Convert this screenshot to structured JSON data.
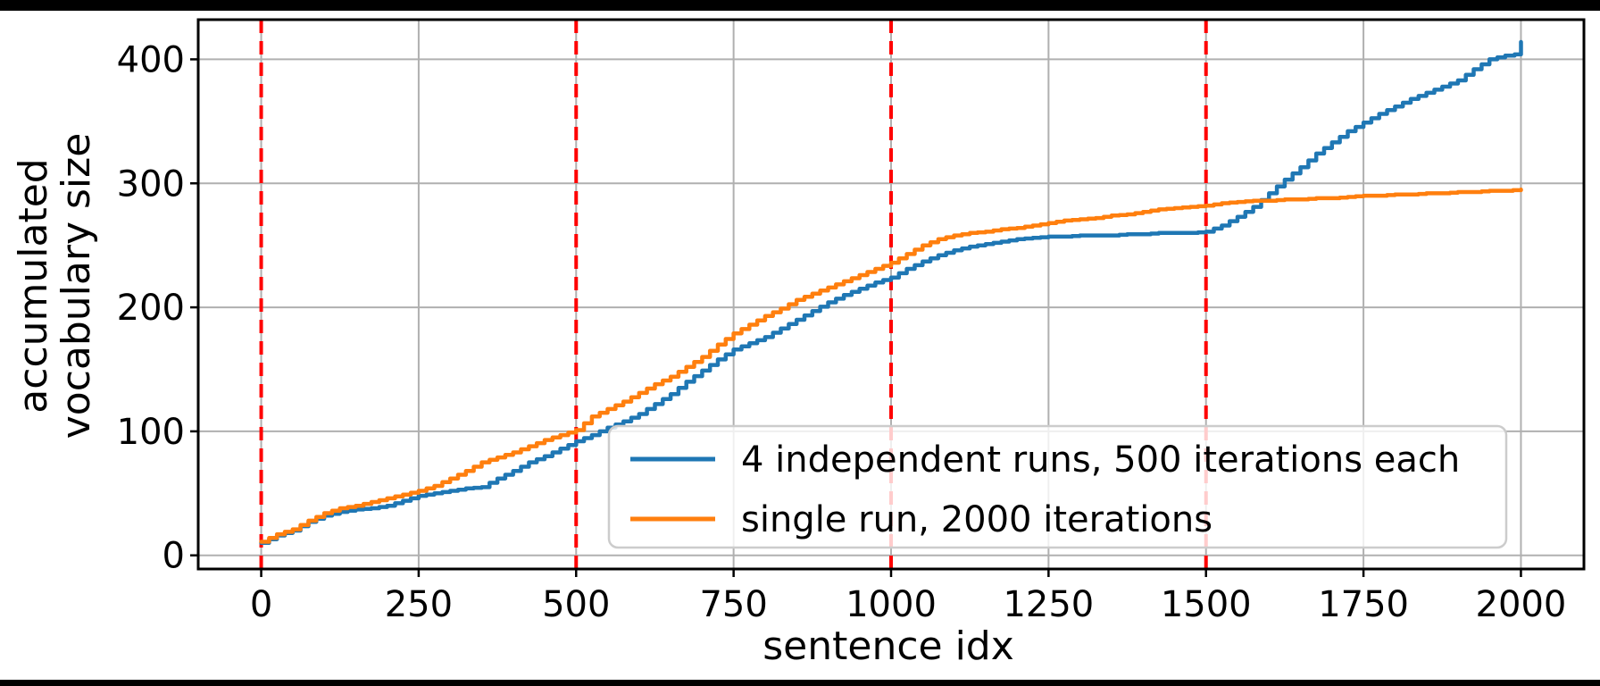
{
  "figure": {
    "background": "#ffffff",
    "frame_color": "#000000"
  },
  "chart_data": {
    "type": "line",
    "title": "",
    "xlabel": "sentence idx",
    "ylabel_lines": [
      "accumulated",
      "vocabulary size"
    ],
    "xlim": [
      -100,
      2100
    ],
    "ylim": [
      -11,
      432
    ],
    "xticks": [
      0,
      250,
      500,
      750,
      1000,
      1250,
      1500,
      1750,
      2000
    ],
    "yticks": [
      0,
      100,
      200,
      300,
      400
    ],
    "grid": true,
    "grid_color": "#b0b0b0",
    "spine_color": "#000000",
    "legend_position": "lower-right-inside",
    "vlines": {
      "x": [
        0,
        500,
        1000,
        1500
      ],
      "color": "#ff0000",
      "style": "dashed"
    },
    "series": [
      {
        "name": "4 independent runs, 500 iterations each",
        "color": "#1f77b4",
        "points": [
          [
            0,
            10
          ],
          [
            25,
            16
          ],
          [
            50,
            20
          ],
          [
            75,
            27
          ],
          [
            100,
            32
          ],
          [
            125,
            35
          ],
          [
            150,
            37
          ],
          [
            175,
            38
          ],
          [
            200,
            40
          ],
          [
            225,
            44
          ],
          [
            250,
            48
          ],
          [
            275,
            50
          ],
          [
            300,
            52
          ],
          [
            325,
            54
          ],
          [
            350,
            55
          ],
          [
            375,
            62
          ],
          [
            400,
            68
          ],
          [
            425,
            75
          ],
          [
            450,
            80
          ],
          [
            475,
            86
          ],
          [
            500,
            92
          ],
          [
            525,
            97
          ],
          [
            550,
            103
          ],
          [
            575,
            108
          ],
          [
            600,
            114
          ],
          [
            625,
            122
          ],
          [
            650,
            130
          ],
          [
            675,
            140
          ],
          [
            700,
            149
          ],
          [
            725,
            158
          ],
          [
            750,
            166
          ],
          [
            775,
            171
          ],
          [
            800,
            176
          ],
          [
            825,
            183
          ],
          [
            850,
            190
          ],
          [
            875,
            197
          ],
          [
            900,
            204
          ],
          [
            925,
            210
          ],
          [
            950,
            215
          ],
          [
            975,
            220
          ],
          [
            1000,
            224
          ],
          [
            1025,
            231
          ],
          [
            1050,
            237
          ],
          [
            1075,
            242
          ],
          [
            1100,
            246
          ],
          [
            1125,
            249
          ],
          [
            1150,
            251
          ],
          [
            1175,
            253
          ],
          [
            1200,
            255
          ],
          [
            1225,
            256
          ],
          [
            1250,
            257
          ],
          [
            1275,
            257
          ],
          [
            1300,
            258
          ],
          [
            1325,
            258
          ],
          [
            1350,
            258
          ],
          [
            1375,
            259
          ],
          [
            1400,
            259
          ],
          [
            1425,
            260
          ],
          [
            1450,
            260
          ],
          [
            1475,
            260
          ],
          [
            1500,
            261
          ],
          [
            1525,
            266
          ],
          [
            1550,
            273
          ],
          [
            1575,
            281
          ],
          [
            1600,
            292
          ],
          [
            1625,
            303
          ],
          [
            1650,
            313
          ],
          [
            1675,
            324
          ],
          [
            1700,
            333
          ],
          [
            1725,
            342
          ],
          [
            1750,
            349
          ],
          [
            1775,
            356
          ],
          [
            1800,
            362
          ],
          [
            1825,
            368
          ],
          [
            1850,
            373
          ],
          [
            1875,
            378
          ],
          [
            1900,
            383
          ],
          [
            1925,
            392
          ],
          [
            1950,
            400
          ],
          [
            1975,
            403
          ],
          [
            1990,
            404
          ],
          [
            2000,
            414
          ]
        ]
      },
      {
        "name": "single run, 2000 iterations",
        "color": "#ff7f0e",
        "points": [
          [
            0,
            11
          ],
          [
            25,
            17
          ],
          [
            50,
            21
          ],
          [
            75,
            28
          ],
          [
            100,
            34
          ],
          [
            125,
            38
          ],
          [
            150,
            40
          ],
          [
            175,
            43
          ],
          [
            200,
            46
          ],
          [
            225,
            49
          ],
          [
            250,
            52
          ],
          [
            275,
            56
          ],
          [
            300,
            62
          ],
          [
            325,
            68
          ],
          [
            350,
            75
          ],
          [
            375,
            79
          ],
          [
            400,
            83
          ],
          [
            425,
            88
          ],
          [
            450,
            93
          ],
          [
            475,
            97
          ],
          [
            500,
            101
          ],
          [
            525,
            112
          ],
          [
            550,
            118
          ],
          [
            575,
            124
          ],
          [
            600,
            131
          ],
          [
            625,
            138
          ],
          [
            650,
            144
          ],
          [
            675,
            152
          ],
          [
            700,
            160
          ],
          [
            725,
            170
          ],
          [
            750,
            179
          ],
          [
            775,
            186
          ],
          [
            800,
            193
          ],
          [
            825,
            199
          ],
          [
            850,
            206
          ],
          [
            875,
            211
          ],
          [
            900,
            216
          ],
          [
            925,
            221
          ],
          [
            950,
            226
          ],
          [
            975,
            231
          ],
          [
            1000,
            236
          ],
          [
            1025,
            243
          ],
          [
            1050,
            250
          ],
          [
            1075,
            255
          ],
          [
            1100,
            258
          ],
          [
            1125,
            260
          ],
          [
            1150,
            261
          ],
          [
            1175,
            263
          ],
          [
            1200,
            264
          ],
          [
            1225,
            266
          ],
          [
            1250,
            268
          ],
          [
            1275,
            270
          ],
          [
            1300,
            271
          ],
          [
            1325,
            272
          ],
          [
            1350,
            274
          ],
          [
            1375,
            275
          ],
          [
            1400,
            277
          ],
          [
            1425,
            279
          ],
          [
            1450,
            280
          ],
          [
            1475,
            281
          ],
          [
            1500,
            282
          ],
          [
            1525,
            284
          ],
          [
            1550,
            285
          ],
          [
            1575,
            286
          ],
          [
            1600,
            286
          ],
          [
            1625,
            287
          ],
          [
            1650,
            287
          ],
          [
            1675,
            288
          ],
          [
            1700,
            288
          ],
          [
            1725,
            289
          ],
          [
            1750,
            290
          ],
          [
            1775,
            290
          ],
          [
            1800,
            291
          ],
          [
            1825,
            291
          ],
          [
            1850,
            292
          ],
          [
            1875,
            292
          ],
          [
            1900,
            293
          ],
          [
            1925,
            293
          ],
          [
            1950,
            294
          ],
          [
            1975,
            294
          ],
          [
            2000,
            295
          ]
        ]
      }
    ]
  }
}
